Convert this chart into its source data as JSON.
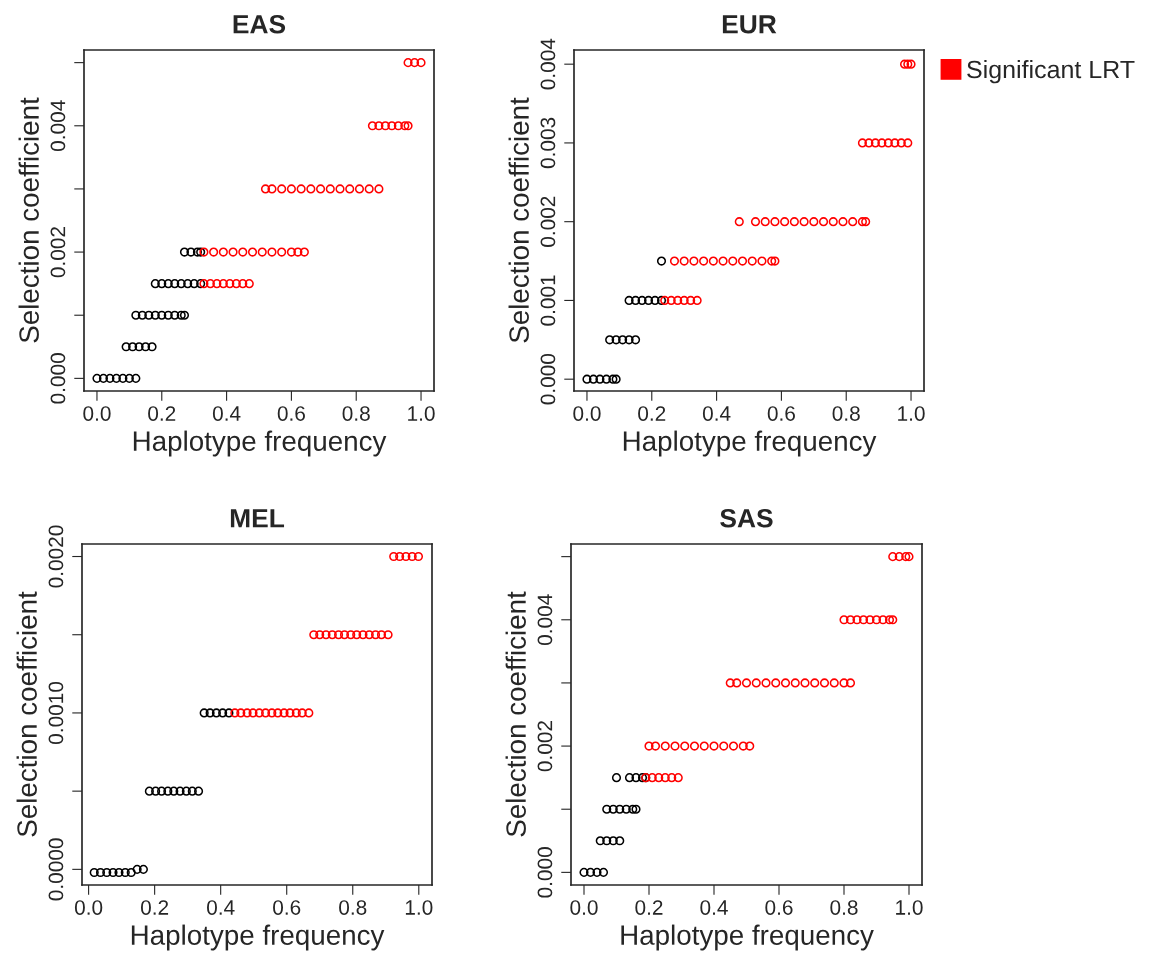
{
  "chart_data": [
    {
      "type": "scatter",
      "title": "EAS",
      "xlabel": "Haplotype frequency",
      "ylabel": "Selection coefficient",
      "marker": "circle",
      "grid": false,
      "legend": false,
      "xlim": [
        -0.04,
        1.04
      ],
      "ylim": [
        -0.0002,
        0.0052
      ],
      "xticks": [
        {
          "value": 0,
          "label": "0.0"
        },
        {
          "value": 0.2,
          "label": "0.2"
        },
        {
          "value": 0.4,
          "label": "0.4"
        },
        {
          "value": 0.6,
          "label": "0.6"
        },
        {
          "value": 0.8,
          "label": "0.8"
        },
        {
          "value": 1,
          "label": "1.0"
        }
      ],
      "yticks": [
        {
          "value": 0,
          "label": "0.000"
        },
        {
          "value": 0.001,
          "label": null
        },
        {
          "value": 0.002,
          "label": "0.002"
        },
        {
          "value": 0.003,
          "label": null
        },
        {
          "value": 0.004,
          "label": "0.004"
        },
        {
          "value": 0.005,
          "label": null
        }
      ],
      "series": [
        {
          "color": "#000000",
          "x": [
            0,
            0.02,
            0.04,
            0.06,
            0.08,
            0.1,
            0.12,
            0.09,
            0.11,
            0.13,
            0.15,
            0.17,
            0.12,
            0.14,
            0.16,
            0.18,
            0.2,
            0.22,
            0.24,
            0.26,
            0.27,
            0.18,
            0.2,
            0.22,
            0.24,
            0.26,
            0.28,
            0.3,
            0.32,
            0.27,
            0.29,
            0.31,
            0.32
          ],
          "values": [
            0,
            0,
            0,
            0,
            0,
            0,
            0,
            0.0005,
            0.0005,
            0.0005,
            0.0005,
            0.0005,
            0.001,
            0.001,
            0.001,
            0.001,
            0.001,
            0.001,
            0.001,
            0.001,
            0.001,
            0.0015,
            0.0015,
            0.0015,
            0.0015,
            0.0015,
            0.0015,
            0.0015,
            0.0015,
            0.002,
            0.002,
            0.002,
            0.002
          ]
        },
        {
          "color": "#ff0000",
          "x": [
            0.33,
            0.35,
            0.37,
            0.39,
            0.41,
            0.43,
            0.45,
            0.47,
            0.33,
            0.36,
            0.39,
            0.42,
            0.45,
            0.48,
            0.51,
            0.54,
            0.57,
            0.6,
            0.62,
            0.64,
            0.52,
            0.54,
            0.57,
            0.6,
            0.63,
            0.66,
            0.69,
            0.72,
            0.75,
            0.78,
            0.81,
            0.84,
            0.87,
            0.85,
            0.87,
            0.89,
            0.91,
            0.93,
            0.95,
            0.96,
            0.96,
            0.98,
            1.0
          ],
          "values": [
            0.0015,
            0.0015,
            0.0015,
            0.0015,
            0.0015,
            0.0015,
            0.0015,
            0.0015,
            0.002,
            0.002,
            0.002,
            0.002,
            0.002,
            0.002,
            0.002,
            0.002,
            0.002,
            0.002,
            0.002,
            0.002,
            0.003,
            0.003,
            0.003,
            0.003,
            0.003,
            0.003,
            0.003,
            0.003,
            0.003,
            0.003,
            0.003,
            0.003,
            0.003,
            0.004,
            0.004,
            0.004,
            0.004,
            0.004,
            0.004,
            0.004,
            0.005,
            0.005,
            0.005
          ]
        }
      ]
    },
    {
      "type": "scatter",
      "title": "EUR",
      "xlabel": "Haplotype frequency",
      "ylabel": "Selection coefficient",
      "marker": "circle",
      "grid": false,
      "legend": "top right",
      "xlim": [
        -0.04,
        1.04
      ],
      "ylim": [
        -0.00015,
        0.00418
      ],
      "xticks": [
        {
          "value": 0,
          "label": "0.0"
        },
        {
          "value": 0.2,
          "label": "0.2"
        },
        {
          "value": 0.4,
          "label": "0.4"
        },
        {
          "value": 0.6,
          "label": "0.6"
        },
        {
          "value": 0.8,
          "label": "0.8"
        },
        {
          "value": 1,
          "label": "1.0"
        }
      ],
      "yticks": [
        {
          "value": 0,
          "label": "0.000"
        },
        {
          "value": 0.001,
          "label": "0.001"
        },
        {
          "value": 0.002,
          "label": "0.002"
        },
        {
          "value": 0.003,
          "label": "0.003"
        },
        {
          "value": 0.004,
          "label": "0.004"
        }
      ],
      "series": [
        {
          "color": "#000000",
          "x": [
            0,
            0.02,
            0.04,
            0.06,
            0.08,
            0.09,
            0.07,
            0.09,
            0.11,
            0.13,
            0.15,
            0.13,
            0.15,
            0.17,
            0.19,
            0.21,
            0.23,
            0.23
          ],
          "values": [
            0,
            0,
            0,
            0,
            0,
            0,
            0.0005,
            0.0005,
            0.0005,
            0.0005,
            0.0005,
            0.001,
            0.001,
            0.001,
            0.001,
            0.001,
            0.001,
            0.0015
          ]
        },
        {
          "name": "Significant LRT",
          "color": "#ff0000",
          "x": [
            0.24,
            0.26,
            0.28,
            0.3,
            0.32,
            0.34,
            0.27,
            0.3,
            0.33,
            0.36,
            0.39,
            0.42,
            0.45,
            0.48,
            0.51,
            0.54,
            0.57,
            0.58,
            0.47,
            0.52,
            0.55,
            0.58,
            0.61,
            0.64,
            0.67,
            0.7,
            0.73,
            0.76,
            0.79,
            0.82,
            0.85,
            0.86,
            0.85,
            0.87,
            0.89,
            0.91,
            0.93,
            0.95,
            0.97,
            0.99,
            0.98,
            0.99,
            1.0
          ],
          "values": [
            0.001,
            0.001,
            0.001,
            0.001,
            0.001,
            0.001,
            0.0015,
            0.0015,
            0.0015,
            0.0015,
            0.0015,
            0.0015,
            0.0015,
            0.0015,
            0.0015,
            0.0015,
            0.0015,
            0.0015,
            0.002,
            0.002,
            0.002,
            0.002,
            0.002,
            0.002,
            0.002,
            0.002,
            0.002,
            0.002,
            0.002,
            0.002,
            0.002,
            0.002,
            0.003,
            0.003,
            0.003,
            0.003,
            0.003,
            0.003,
            0.003,
            0.003,
            0.004,
            0.004,
            0.004
          ]
        }
      ]
    },
    {
      "type": "scatter",
      "title": "MEL",
      "xlabel": "Haplotype frequency",
      "ylabel": "Selection coefficient",
      "marker": "circle",
      "grid": false,
      "legend": false,
      "xlim": [
        -0.02,
        1.04
      ],
      "ylim": [
        -0.0001,
        0.00208
      ],
      "xticks": [
        {
          "value": 0,
          "label": "0.0"
        },
        {
          "value": 0.2,
          "label": "0.2"
        },
        {
          "value": 0.4,
          "label": "0.4"
        },
        {
          "value": 0.6,
          "label": "0.6"
        },
        {
          "value": 0.8,
          "label": "0.8"
        },
        {
          "value": 1,
          "label": "1.0"
        }
      ],
      "yticks": [
        {
          "value": 0,
          "label": "0.0000"
        },
        {
          "value": 0.0005,
          "label": null
        },
        {
          "value": 0.001,
          "label": "0.0010"
        },
        {
          "value": 0.0015,
          "label": null
        },
        {
          "value": 0.002,
          "label": "0.0020"
        }
      ],
      "series": [
        {
          "color": "#000000",
          "x": [
            0.017,
            0.036,
            0.055,
            0.074,
            0.092,
            0.111,
            0.129,
            0.147,
            0.166,
            0.184,
            0.203,
            0.221,
            0.24,
            0.258,
            0.277,
            0.296,
            0.314,
            0.333,
            0.35,
            0.368,
            0.387,
            0.406,
            0.425
          ],
          "values": [
            -2e-05,
            -2e-05,
            -2e-05,
            -2e-05,
            -2e-05,
            -2e-05,
            -2e-05,
            0,
            0,
            0.0005,
            0.0005,
            0.0005,
            0.0005,
            0.0005,
            0.0005,
            0.0005,
            0.0005,
            0.0005,
            0.001,
            0.001,
            0.001,
            0.001,
            0.001
          ]
        },
        {
          "color": "#ff0000",
          "x": [
            0.443,
            0.461,
            0.48,
            0.498,
            0.517,
            0.536,
            0.555,
            0.573,
            0.592,
            0.61,
            0.629,
            0.647,
            0.667,
            0.682,
            0.7,
            0.719,
            0.738,
            0.757,
            0.775,
            0.794,
            0.812,
            0.831,
            0.85,
            0.869,
            0.887,
            0.907,
            0.924,
            0.942,
            0.961,
            0.98,
            0.999
          ],
          "values": [
            0.001,
            0.001,
            0.001,
            0.001,
            0.001,
            0.001,
            0.001,
            0.001,
            0.001,
            0.001,
            0.001,
            0.001,
            0.001,
            0.0015,
            0.0015,
            0.0015,
            0.0015,
            0.0015,
            0.0015,
            0.0015,
            0.0015,
            0.0015,
            0.0015,
            0.0015,
            0.0015,
            0.0015,
            0.002,
            0.002,
            0.002,
            0.002,
            0.002
          ]
        }
      ]
    },
    {
      "type": "scatter",
      "title": "SAS",
      "xlabel": "Haplotype frequency",
      "ylabel": "Selection coefficient",
      "marker": "circle",
      "grid": false,
      "legend": false,
      "xlim": [
        -0.04,
        1.04
      ],
      "ylim": [
        -0.0002,
        0.0052
      ],
      "xticks": [
        {
          "value": 0,
          "label": "0.0"
        },
        {
          "value": 0.2,
          "label": "0.2"
        },
        {
          "value": 0.4,
          "label": "0.4"
        },
        {
          "value": 0.6,
          "label": "0.6"
        },
        {
          "value": 0.8,
          "label": "0.8"
        },
        {
          "value": 1,
          "label": "1.0"
        }
      ],
      "yticks": [
        {
          "value": 0,
          "label": "0.000"
        },
        {
          "value": 0.001,
          "label": null
        },
        {
          "value": 0.002,
          "label": "0.002"
        },
        {
          "value": 0.003,
          "label": null
        },
        {
          "value": 0.004,
          "label": "0.004"
        },
        {
          "value": 0.005,
          "label": null
        }
      ],
      "series": [
        {
          "color": "#000000",
          "x": [
            0,
            0.02,
            0.04,
            0.06,
            0.05,
            0.07,
            0.09,
            0.11,
            0.07,
            0.09,
            0.11,
            0.13,
            0.15,
            0.16,
            0.1,
            0.14,
            0.16,
            0.18,
            0.19
          ],
          "values": [
            0,
            0,
            0,
            0,
            0.0005,
            0.0005,
            0.0005,
            0.0005,
            0.001,
            0.001,
            0.001,
            0.001,
            0.001,
            0.001,
            0.0015,
            0.0015,
            0.0015,
            0.0015,
            0.0015
          ]
        },
        {
          "color": "#ff0000",
          "x": [
            0.19,
            0.21,
            0.23,
            0.25,
            0.27,
            0.29,
            0.2,
            0.22,
            0.25,
            0.28,
            0.31,
            0.34,
            0.37,
            0.4,
            0.43,
            0.46,
            0.49,
            0.51,
            0.45,
            0.47,
            0.5,
            0.53,
            0.56,
            0.59,
            0.62,
            0.65,
            0.68,
            0.71,
            0.74,
            0.77,
            0.8,
            0.82,
            0.8,
            0.82,
            0.84,
            0.86,
            0.88,
            0.9,
            0.92,
            0.94,
            0.95,
            0.95,
            0.97,
            0.99,
            1.0
          ],
          "values": [
            0.0015,
            0.0015,
            0.0015,
            0.0015,
            0.0015,
            0.0015,
            0.002,
            0.002,
            0.002,
            0.002,
            0.002,
            0.002,
            0.002,
            0.002,
            0.002,
            0.002,
            0.002,
            0.002,
            0.003,
            0.003,
            0.003,
            0.003,
            0.003,
            0.003,
            0.003,
            0.003,
            0.003,
            0.003,
            0.003,
            0.003,
            0.003,
            0.003,
            0.004,
            0.004,
            0.004,
            0.004,
            0.004,
            0.004,
            0.004,
            0.004,
            0.004,
            0.005,
            0.005,
            0.005,
            0.005
          ]
        }
      ]
    }
  ]
}
